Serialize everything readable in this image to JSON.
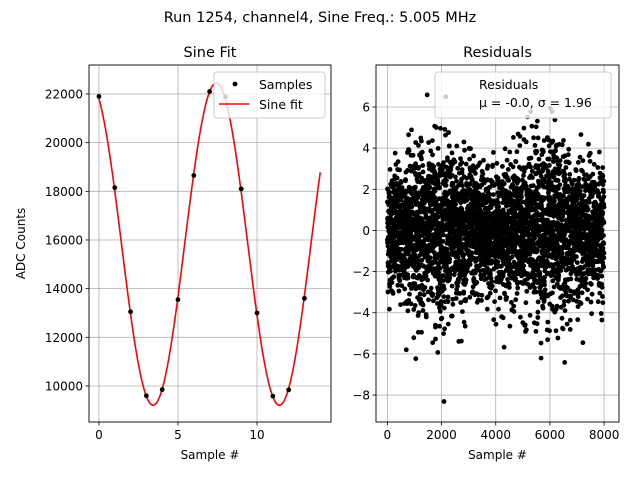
{
  "suptitle": "Run 1254, channel4, Sine Freq.: 5.005 MHz",
  "chart_data": [
    {
      "type": "scatter+line",
      "title": "Sine Fit",
      "xlabel": "Sample #",
      "ylabel": "ADC Counts",
      "xlim": [
        -0.63,
        14.68
      ],
      "ylim": [
        8520,
        23190
      ],
      "xticks": [
        0,
        5,
        10
      ],
      "xtick_labels": [
        "0",
        "5",
        "10"
      ],
      "yticks": [
        10000,
        12000,
        14000,
        16000,
        18000,
        20000,
        22000
      ],
      "ytick_labels": [
        "10000",
        "12000",
        "14000",
        "16000",
        "18000",
        "20000",
        "22000"
      ],
      "grid": true,
      "legend": {
        "placement": "top-right",
        "entries": [
          "Samples",
          "Sine fit"
        ]
      },
      "samples": {
        "x": [
          0,
          1,
          2,
          3,
          4,
          5,
          6,
          7,
          8,
          9,
          10,
          11,
          12,
          13
        ],
        "y": [
          21900,
          18150,
          13050,
          9600,
          9850,
          13550,
          18650,
          22100,
          21880,
          18100,
          13000,
          9580,
          9840,
          13600
        ],
        "color": "#000000"
      },
      "fit": {
        "x_range": [
          0,
          14
        ],
        "offset": 15830,
        "amplitude": 6620,
        "period": 7.99,
        "peak_x": 7.42,
        "color": "#ff0000"
      }
    },
    {
      "type": "scatter",
      "title": "Residuals",
      "xlabel": "Sample #",
      "ylabel": "",
      "xlim": [
        -420,
        8550
      ],
      "ylim": [
        -9.31,
        8.04
      ],
      "xticks": [
        0,
        2000,
        4000,
        6000,
        8000
      ],
      "xtick_labels": [
        "0",
        "2000",
        "4000",
        "6000",
        "8000"
      ],
      "yticks": [
        -8,
        -6,
        -4,
        -2,
        0,
        2,
        4,
        6
      ],
      "ytick_labels": [
        "−8",
        "−6",
        "−4",
        "−2",
        "0",
        "2",
        "4",
        "6"
      ],
      "grid": true,
      "legend": {
        "placement": "top-right",
        "entries": [
          "Residuals",
          "μ = -0.0, σ = 1.96"
        ]
      },
      "residuals": {
        "n": 8000,
        "mean": -0.0,
        "sigma": 1.96,
        "min": -8.5,
        "max": 7.1,
        "color": "#000000"
      }
    }
  ]
}
